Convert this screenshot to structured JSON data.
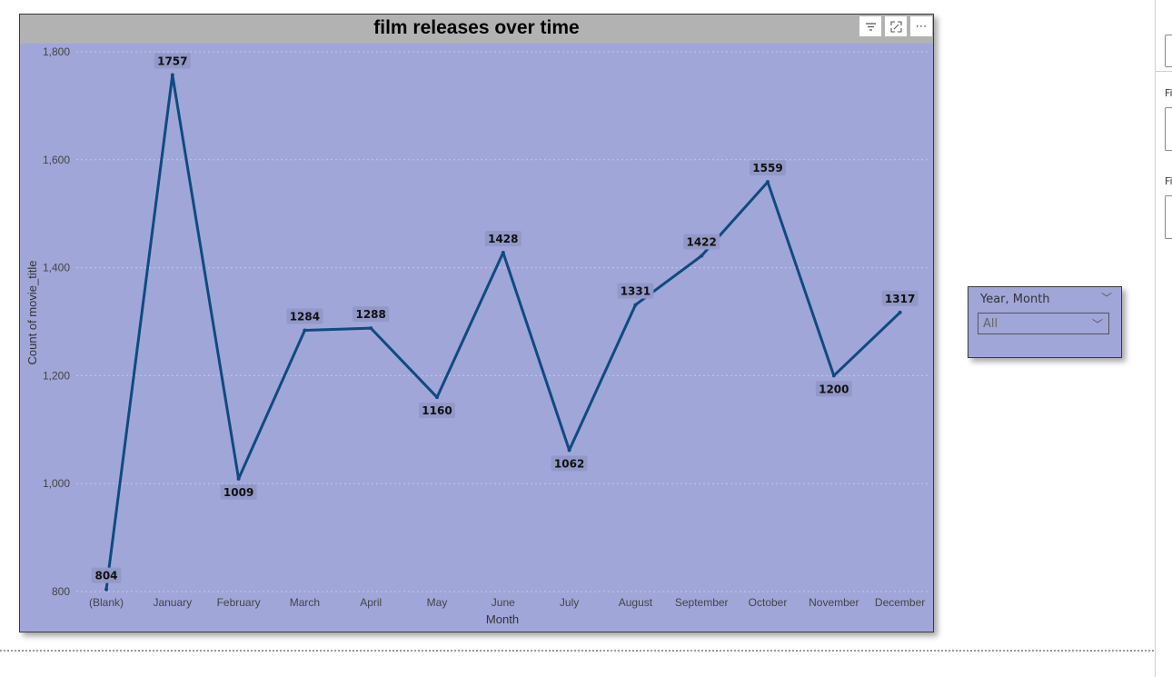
{
  "visual": {
    "title": "film releases over time",
    "header_icons": {
      "filter": "filter-icon",
      "focus": "focus-mode-icon",
      "more": "more-options-icon"
    }
  },
  "chart_data": {
    "type": "line",
    "title": "film releases over time",
    "xlabel": "Month",
    "ylabel": "Count of movie_title",
    "categories": [
      "(Blank)",
      "January",
      "February",
      "March",
      "April",
      "May",
      "June",
      "July",
      "August",
      "September",
      "October",
      "November",
      "December"
    ],
    "series": [
      {
        "values": [
          804,
          1757,
          1009,
          1284,
          1288,
          1160,
          1428,
          1062,
          1331,
          1422,
          1559,
          1200,
          1317
        ]
      }
    ],
    "ylim": [
      800,
      1800
    ],
    "yticks": [
      800,
      1000,
      1200,
      1400,
      1600,
      1800
    ],
    "ytick_labels": [
      "800",
      "1,000",
      "1,200",
      "1,400",
      "1,600",
      "1,800"
    ],
    "grid": true,
    "data_labels": true,
    "colors": {
      "line": "#0f4a80",
      "background": "#a0a6d8",
      "label_bg": "#9298c8"
    }
  },
  "slicer": {
    "header": "Year, Month",
    "value": "All"
  },
  "right_pane": {
    "label1": "Fi",
    "label2": "Fi"
  }
}
